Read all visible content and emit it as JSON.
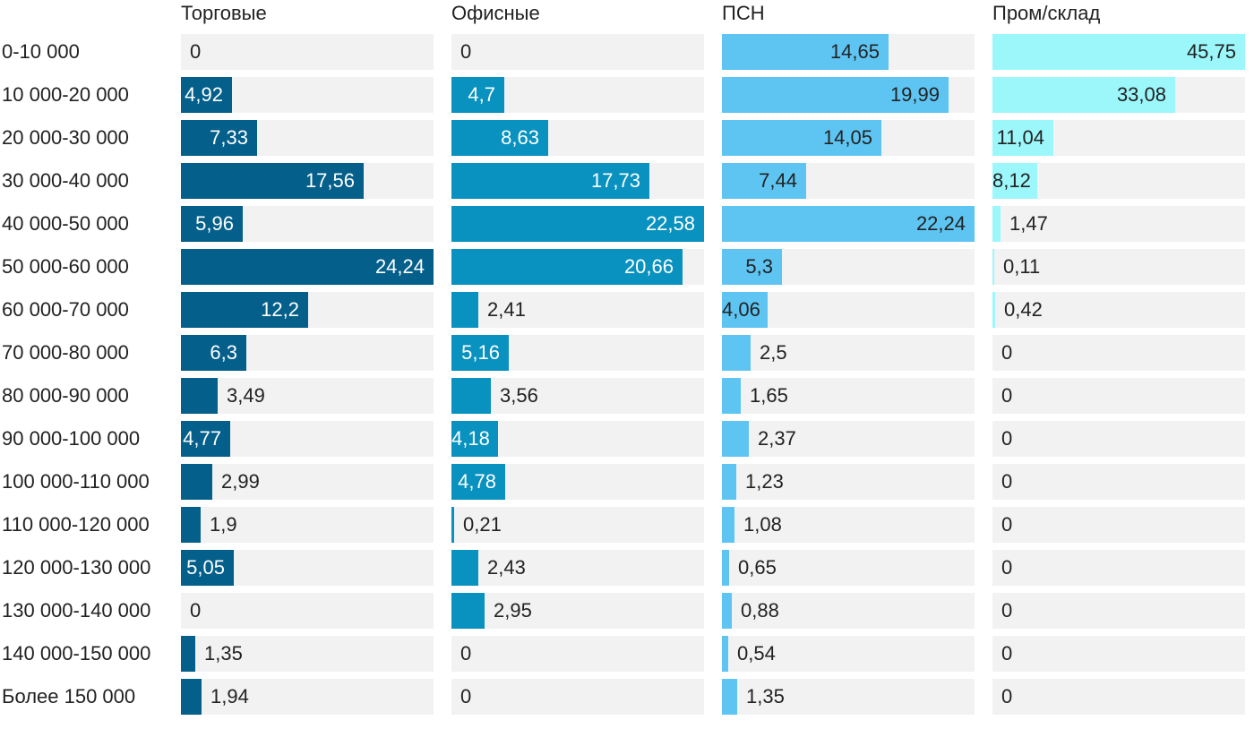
{
  "chart_data": {
    "type": "bar",
    "orientation": "horizontal",
    "categories": [
      "0-10 000",
      "10 000-20 000",
      "20 000-30 000",
      "30 000-40 000",
      "40 000-50 000",
      "50 000-60 000",
      "60 000-70 000",
      "70 000-80 000",
      "80 000-90 000",
      "90 000-100 000",
      "100 000-110 000",
      "110 000-120 000",
      "120 000-130 000",
      "130 000-140 000",
      "140 000-150 000",
      "Более 150 000"
    ],
    "series": [
      {
        "name": "Торговые",
        "color": "#045f8a",
        "text_color": "#ffffff",
        "max": 24.24,
        "values": [
          0,
          4.92,
          7.33,
          17.56,
          5.96,
          24.24,
          12.2,
          6.3,
          3.49,
          4.77,
          2.99,
          1.9,
          5.05,
          0,
          1.35,
          1.94
        ],
        "labels": [
          "0",
          "4,92",
          "7,33",
          "17,56",
          "5,96",
          "24,24",
          "12,2",
          "6,3",
          "3,49",
          "4,77",
          "2,99",
          "1,9",
          "5,05",
          "0",
          "1,35",
          "1,94"
        ]
      },
      {
        "name": "Офисные",
        "color": "#0992bf",
        "text_color": "#ffffff",
        "max": 22.58,
        "values": [
          0,
          4.7,
          8.63,
          17.73,
          22.58,
          20.66,
          2.41,
          5.16,
          3.56,
          4.18,
          4.78,
          0.21,
          2.43,
          2.95,
          0,
          0
        ],
        "labels": [
          "0",
          "4,7",
          "8,63",
          "17,73",
          "22,58",
          "20,66",
          "2,41",
          "5,16",
          "3,56",
          "4,18",
          "4,78",
          "0,21",
          "2,43",
          "2,95",
          "0",
          "0"
        ]
      },
      {
        "name": "ПСН",
        "color": "#5ec5f3",
        "text_color": "#222222",
        "max": 22.24,
        "values": [
          14.65,
          19.99,
          14.05,
          7.44,
          22.24,
          5.3,
          4.06,
          2.5,
          1.65,
          2.37,
          1.23,
          1.08,
          0.65,
          0.88,
          0.54,
          1.35
        ],
        "labels": [
          "14,65",
          "19,99",
          "14,05",
          "7,44",
          "22,24",
          "5,3",
          "4,06",
          "2,5",
          "1,65",
          "2,37",
          "1,23",
          "1,08",
          "0,65",
          "0,88",
          "0,54",
          "1,35"
        ]
      },
      {
        "name": "Пром/склад",
        "color": "#9cf7fb",
        "text_color": "#222222",
        "max": 45.75,
        "values": [
          45.75,
          33.08,
          11.04,
          8.12,
          1.47,
          0.11,
          0.42,
          0,
          0,
          0,
          0,
          0,
          0,
          0,
          0,
          0
        ],
        "labels": [
          "45,75",
          "33,08",
          "11,04",
          "8,12",
          "1,47",
          "0,11",
          "0,42",
          "0",
          "0",
          "0",
          "0",
          "0",
          "0",
          "0",
          "0",
          "0"
        ]
      }
    ],
    "grid": false,
    "legend": "none"
  }
}
